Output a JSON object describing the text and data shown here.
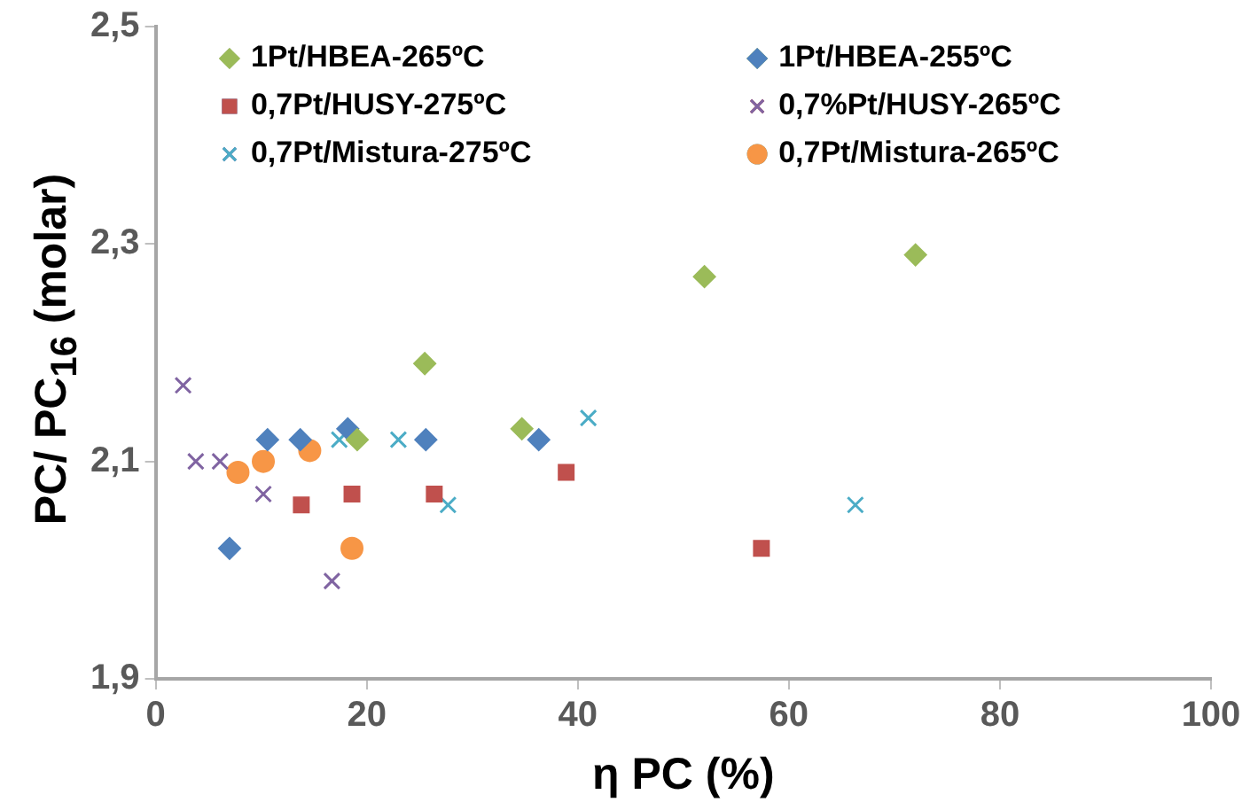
{
  "chart_data": {
    "type": "scatter",
    "xlabel": "η PC (%)",
    "ylabel": "PC/ PC$_{16}$ (molar)",
    "xlim": [
      0,
      100
    ],
    "xticks": [
      0,
      20,
      40,
      60,
      80,
      100
    ],
    "ylim": [
      1.9,
      2.5
    ],
    "yticks": [
      {
        "value": 1.9,
        "label": "1,9"
      },
      {
        "value": 2.1,
        "label": "2,1"
      },
      {
        "value": 2.3,
        "label": "2,3"
      },
      {
        "value": 2.5,
        "label": "2,5"
      }
    ],
    "grid": false,
    "legend": "top",
    "series": [
      {
        "name": "1Pt/HBEA-265ºC",
        "color": "#9bbb59",
        "marker": "diamond",
        "x": [
          19.1,
          25.5,
          34.7,
          52.0,
          72.0
        ],
        "values": [
          2.12,
          2.19,
          2.13,
          2.27,
          2.29
        ]
      },
      {
        "name": "1Pt/HBEA-255ºC",
        "color": "#4f81bd",
        "marker": "diamond",
        "x": [
          7.0,
          10.6,
          13.7,
          18.2,
          25.6,
          36.3
        ],
        "values": [
          2.02,
          2.12,
          2.12,
          2.13,
          2.12,
          2.12
        ]
      },
      {
        "name": "0,7Pt/HUSY-275ºC",
        "color": "#c0504d",
        "marker": "square",
        "x": [
          13.8,
          18.6,
          26.4,
          38.9,
          57.4
        ],
        "values": [
          2.06,
          2.07,
          2.07,
          2.09,
          2.02
        ]
      },
      {
        "name": "0,7%Pt/HUSY-265ºC",
        "color": "#8064a2",
        "marker": "cross",
        "x": [
          2.6,
          3.8,
          6.1,
          10.2,
          16.7
        ],
        "values": [
          2.17,
          2.1,
          2.1,
          2.07,
          1.99
        ]
      },
      {
        "name": "0,7Pt/Mistura-275ºC",
        "color": "#4bacc6",
        "marker": "cross",
        "x": [
          17.4,
          23.0,
          27.7,
          41.0,
          66.3
        ],
        "values": [
          2.12,
          2.12,
          2.06,
          2.14,
          2.06
        ]
      },
      {
        "name": "0,7Pt/Mistura-265ºC",
        "color": "#f79646",
        "marker": "circle",
        "x": [
          7.8,
          10.2,
          14.6,
          18.6
        ],
        "values": [
          2.09,
          2.1,
          2.11,
          2.02
        ]
      }
    ]
  }
}
